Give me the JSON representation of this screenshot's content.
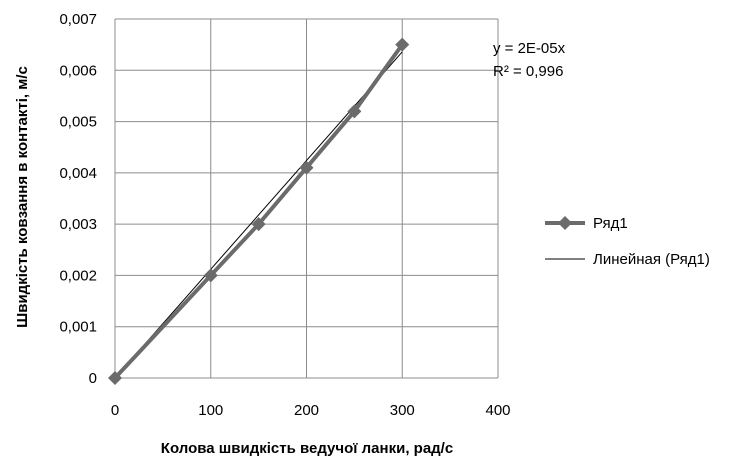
{
  "chart_data": {
    "type": "scatter",
    "xlabel": "Колова швидкість ведучої ланки, рад/с",
    "ylabel": "Швидкість ковзання в контакті, м/с",
    "xlim": [
      0,
      400
    ],
    "ylim": [
      0,
      0.007
    ],
    "x_ticks": [
      0,
      100,
      200,
      300,
      400
    ],
    "x_tick_labels": [
      "0",
      "100",
      "200",
      "300",
      "400"
    ],
    "y_ticks": [
      0,
      0.001,
      0.002,
      0.003,
      0.004,
      0.005,
      0.006,
      0.007
    ],
    "y_tick_labels": [
      "0",
      "0,001",
      "0,002",
      "0,003",
      "0,004",
      "0,005",
      "0,006",
      "0,007"
    ],
    "grid": true,
    "legend_position": "right",
    "series": [
      {
        "name": "Ряд1",
        "x": [
          0,
          100,
          150,
          200,
          250,
          300
        ],
        "y": [
          0,
          0.002,
          0.003,
          0.0041,
          0.0052,
          0.0065
        ],
        "marker": "diamond",
        "color": "#6b6b6b"
      }
    ],
    "trendline": {
      "name": "Линейная (Ряд1)",
      "type": "linear",
      "slope": 2.12e-05,
      "x_range": [
        0,
        300
      ],
      "color": "#000000"
    },
    "annotations": {
      "equation": "y = 2E-05x",
      "r_squared": "R² = 0,996"
    }
  }
}
